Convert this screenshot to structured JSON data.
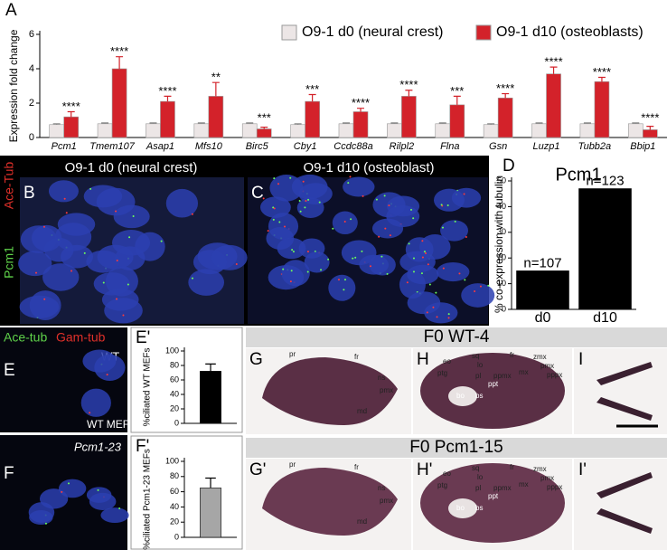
{
  "chart_data": [
    {
      "type": "bar",
      "panel": "A",
      "ylabel": "Expression fold change",
      "categories": [
        "Pcm1",
        "Tmem107",
        "Asap1",
        "Mfs10",
        "Birc5",
        "Cby1",
        "Ccdc88a",
        "Rilpl2",
        "Flna",
        "Gsn",
        "Luzp1",
        "Tubb2a",
        "Bbip1"
      ],
      "series": [
        {
          "name": "O9-1 d0 (neural crest)",
          "color": "#ece6e6",
          "values": [
            0.75,
            0.8,
            0.8,
            0.8,
            0.8,
            0.75,
            0.8,
            0.8,
            0.8,
            0.75,
            0.8,
            0.8,
            0.8
          ],
          "errors": [
            0.05,
            0.05,
            0.05,
            0.05,
            0.05,
            0.05,
            0.05,
            0.05,
            0.05,
            0.05,
            0.05,
            0.05,
            0.05
          ]
        },
        {
          "name": "O9-1 d10 (osteoblasts)",
          "color": "#d3222a",
          "values": [
            1.2,
            4.0,
            2.1,
            2.4,
            0.5,
            2.1,
            1.5,
            2.4,
            1.9,
            2.3,
            3.7,
            3.25,
            0.45
          ],
          "errors": [
            0.3,
            0.7,
            0.3,
            0.8,
            0.1,
            0.4,
            0.2,
            0.35,
            0.5,
            0.25,
            0.4,
            0.25,
            0.2
          ]
        }
      ],
      "annotations": [
        "****",
        "****",
        "****",
        "**",
        "***",
        "***",
        "****",
        "****",
        "***",
        "****",
        "****",
        "****",
        "****"
      ],
      "ylim": [
        0,
        6
      ],
      "yticks": [
        0,
        2,
        4,
        6
      ]
    },
    {
      "type": "bar",
      "panel": "D",
      "title": "Pcm1",
      "ylabel": "% co-expression with tubulin",
      "categories": [
        "d0",
        "d10"
      ],
      "values": [
        15,
        47
      ],
      "annotations": [
        "n=107",
        "n=123"
      ],
      "color": "#000000",
      "ylim": [
        0,
        50
      ],
      "yticks": [
        0,
        10,
        20,
        30,
        40,
        50
      ]
    },
    {
      "type": "bar",
      "panel": "E'",
      "ylabel": "%ciliated WT MEFs",
      "categories": [
        null
      ],
      "values": [
        72
      ],
      "errors": [
        10
      ],
      "color": "#000000",
      "ylim": [
        0,
        100
      ],
      "yticks": [
        0,
        20,
        40,
        60,
        80,
        100
      ]
    },
    {
      "type": "bar",
      "panel": "F'",
      "ylabel": "%ciliated Pcm1-23 MEFs",
      "categories": [
        null
      ],
      "values": [
        65
      ],
      "errors": [
        13
      ],
      "color": "#a6a6a6",
      "ylim": [
        0,
        100
      ],
      "yticks": [
        0,
        20,
        40,
        60,
        80,
        100
      ]
    }
  ],
  "figure": {
    "B": {
      "label": "B",
      "title": "O9-1 d0 (neural crest)"
    },
    "C": {
      "label": "C",
      "title": "O9-1 d10 (osteoblast)"
    },
    "stain_labels": [
      "Ace-Tub",
      "Pcm1"
    ],
    "E": {
      "label": "E",
      "stains": [
        "Ace-tub",
        "Gam-tub"
      ],
      "genotype": "WT",
      "cell": "WT MEF"
    },
    "F": {
      "label": "F",
      "genotype": "Pcm1-23"
    },
    "wt_header": "F0 WT-4",
    "mut_header": "F0 Pcm1-15",
    "panels": [
      "G",
      "H",
      "I",
      "G'",
      "H'",
      "I'"
    ],
    "lateral_labels": [
      "pr",
      "fr",
      "ns",
      "pmx",
      "md"
    ],
    "ventral_labels": [
      "eo",
      "sq",
      "lo",
      "fr",
      "zmx",
      "ptg",
      "pl",
      "ppmx",
      "pmx",
      "mx",
      "pppx",
      "bo",
      "bs",
      "ppt"
    ]
  }
}
